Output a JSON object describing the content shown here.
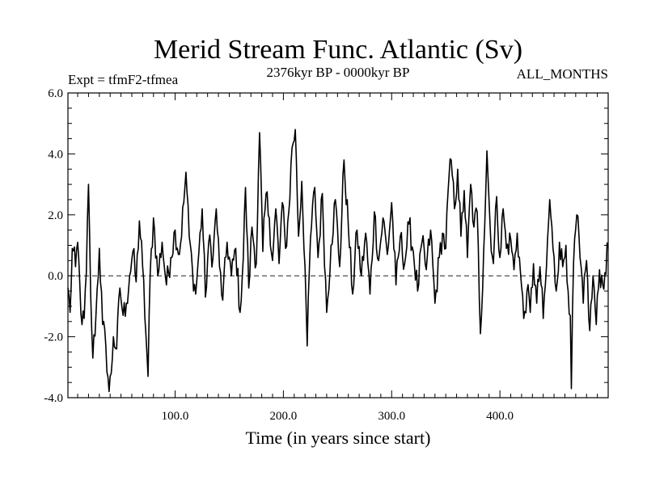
{
  "chart_data": {
    "type": "line",
    "title": "Merid Stream Func. Atlantic (Sv)",
    "subtitle_left": "Expt = tfmF2-tfmea",
    "subtitle_center": "2376kyr BP - 0000kyr BP",
    "subtitle_right": "ALL_MONTHS",
    "xlabel": "Time (in years since start)",
    "ylabel": "",
    "xlim": [
      1,
      500
    ],
    "ylim": [
      -4.0,
      6.0
    ],
    "x_ticks": [
      100,
      200,
      300,
      400
    ],
    "x_tick_labels": [
      "100.0",
      "200.0",
      "300.0",
      "400.0"
    ],
    "y_ticks": [
      -4,
      -2,
      0,
      2,
      4,
      6
    ],
    "y_tick_labels": [
      "-4.0",
      "-2.0",
      "0.0",
      "2.0",
      "4.0",
      "6.0"
    ],
    "reference_line": {
      "y": 0.0,
      "style": "dashed"
    },
    "series": [
      {
        "name": "Merid Stream Func. Atlantic",
        "x_start": 1,
        "x_step": 1,
        "keypoints": [
          [
            1,
            -0.4
          ],
          [
            3,
            -1.2
          ],
          [
            5,
            0.9
          ],
          [
            8,
            0.3
          ],
          [
            10,
            1.1
          ],
          [
            12,
            -0.3
          ],
          [
            14,
            -1.6
          ],
          [
            16,
            -1.4
          ],
          [
            18,
            0.1
          ],
          [
            20,
            3.0
          ],
          [
            22,
            -0.6
          ],
          [
            24,
            -2.7
          ],
          [
            27,
            -1.2
          ],
          [
            30,
            0.9
          ],
          [
            33,
            -1.6
          ],
          [
            36,
            -2.3
          ],
          [
            39,
            -3.8
          ],
          [
            41,
            -3.2
          ],
          [
            43,
            -2.0
          ],
          [
            46,
            -2.4
          ],
          [
            49,
            -0.4
          ],
          [
            52,
            -1.3
          ],
          [
            55,
            -0.9
          ],
          [
            58,
            0.0
          ],
          [
            61,
            0.8
          ],
          [
            64,
            -0.2
          ],
          [
            67,
            1.8
          ],
          [
            70,
            0.3
          ],
          [
            73,
            -1.9
          ],
          [
            75,
            -3.3
          ],
          [
            77,
            0.1
          ],
          [
            80,
            1.9
          ],
          [
            84,
            0.0
          ],
          [
            88,
            1.1
          ],
          [
            92,
            -0.3
          ],
          [
            96,
            0.6
          ],
          [
            100,
            1.5
          ],
          [
            104,
            0.7
          ],
          [
            108,
            2.4
          ],
          [
            110,
            3.4
          ],
          [
            113,
            1.3
          ],
          [
            116,
            0.2
          ],
          [
            119,
            -0.6
          ],
          [
            122,
            0.8
          ],
          [
            125,
            2.2
          ],
          [
            128,
            -0.7
          ],
          [
            131,
            1.1
          ],
          [
            135,
            0.6
          ],
          [
            138,
            2.2
          ],
          [
            141,
            0.3
          ],
          [
            144,
            -0.8
          ],
          [
            148,
            1.1
          ],
          [
            152,
            0.0
          ],
          [
            156,
            0.9
          ],
          [
            160,
            -1.2
          ],
          [
            163,
            0.6
          ],
          [
            165,
            2.9
          ],
          [
            168,
            -0.4
          ],
          [
            171,
            1.6
          ],
          [
            175,
            0.4
          ],
          [
            178,
            4.7
          ],
          [
            181,
            0.8
          ],
          [
            184,
            2.7
          ],
          [
            187,
            1.9
          ],
          [
            190,
            0.5
          ],
          [
            193,
            2.2
          ],
          [
            196,
            0.4
          ],
          [
            199,
            2.4
          ],
          [
            202,
            0.9
          ],
          [
            205,
            2.1
          ],
          [
            208,
            4.2
          ],
          [
            211,
            4.8
          ],
          [
            214,
            1.3
          ],
          [
            217,
            3.1
          ],
          [
            220,
            0.3
          ],
          [
            222,
            -2.3
          ],
          [
            225,
            1.2
          ],
          [
            229,
            2.9
          ],
          [
            232,
            0.6
          ],
          [
            236,
            2.7
          ],
          [
            240,
            -1.2
          ],
          [
            244,
            1.0
          ],
          [
            248,
            2.5
          ],
          [
            252,
            0.3
          ],
          [
            256,
            3.8
          ],
          [
            260,
            1.6
          ],
          [
            264,
            -0.6
          ],
          [
            268,
            1.5
          ],
          [
            272,
            0.0
          ],
          [
            276,
            1.4
          ],
          [
            280,
            -0.6
          ],
          [
            284,
            2.1
          ],
          [
            288,
            0.5
          ],
          [
            292,
            1.9
          ],
          [
            296,
            0.7
          ],
          [
            300,
            2.4
          ],
          [
            304,
            -0.3
          ],
          [
            308,
            1.3
          ],
          [
            312,
            0.4
          ],
          [
            316,
            1.7
          ],
          [
            320,
            0.8
          ],
          [
            324,
            -0.5
          ],
          [
            328,
            1.1
          ],
          [
            332,
            0.2
          ],
          [
            336,
            1.5
          ],
          [
            340,
            -0.9
          ],
          [
            344,
            0.6
          ],
          [
            347,
            1.4
          ],
          [
            350,
            0.9
          ],
          [
            352,
            2.7
          ],
          [
            355,
            3.8
          ],
          [
            358,
            2.2
          ],
          [
            361,
            3.5
          ],
          [
            364,
            1.3
          ],
          [
            367,
            2.8
          ],
          [
            370,
            0.6
          ],
          [
            373,
            3.0
          ],
          [
            376,
            1.6
          ],
          [
            379,
            2.1
          ],
          [
            382,
            -1.9
          ],
          [
            385,
            0.8
          ],
          [
            388,
            4.1
          ],
          [
            391,
            1.6
          ],
          [
            394,
            0.4
          ],
          [
            397,
            2.6
          ],
          [
            400,
            0.6
          ],
          [
            403,
            2.2
          ],
          [
            406,
            0.9
          ],
          [
            410,
            1.2
          ],
          [
            413,
            0.2
          ],
          [
            416,
            1.4
          ],
          [
            419,
            0.1
          ],
          [
            422,
            -1.4
          ],
          [
            425,
            -0.5
          ],
          [
            428,
            -1.2
          ],
          [
            431,
            0.4
          ],
          [
            434,
            -0.9
          ],
          [
            437,
            0.3
          ],
          [
            440,
            -1.4
          ],
          [
            443,
            0.3
          ],
          [
            446,
            2.5
          ],
          [
            449,
            0.9
          ],
          [
            452,
            -0.5
          ],
          [
            455,
            1.1
          ],
          [
            458,
            0.3
          ],
          [
            461,
            1.0
          ],
          [
            463,
            -0.5
          ],
          [
            465,
            -1.3
          ],
          [
            466,
            -3.7
          ],
          [
            468,
            0.4
          ],
          [
            471,
            2.0
          ],
          [
            474,
            0.6
          ],
          [
            477,
            -0.9
          ],
          [
            480,
            0.5
          ],
          [
            483,
            -1.8
          ],
          [
            486,
            0.0
          ],
          [
            489,
            -1.6
          ],
          [
            492,
            0.2
          ],
          [
            495,
            -0.3
          ],
          [
            497,
            0.1
          ],
          [
            500,
            0.9
          ]
        ]
      }
    ]
  }
}
